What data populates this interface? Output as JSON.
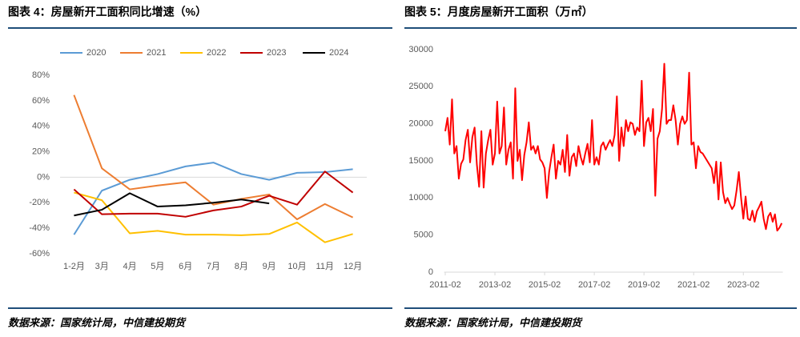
{
  "chart_data": [
    {
      "type": "line",
      "title": "图表 4：房屋新开工面积同比增速（%）",
      "categories": [
        "1-2月",
        "3月",
        "4月",
        "5月",
        "6月",
        "7月",
        "8月",
        "9月",
        "10月",
        "11月",
        "12月"
      ],
      "series": [
        {
          "name": "2020",
          "color": "#5b9bd5",
          "values": [
            -45,
            -10.5,
            -2,
            2.5,
            8.5,
            11.5,
            2.5,
            -2,
            3.5,
            4,
            6.3
          ]
        },
        {
          "name": "2021",
          "color": "#ed7d31",
          "values": [
            64.5,
            7,
            -9.5,
            -6.5,
            -4,
            -21.5,
            -17,
            -13.5,
            -33,
            -21,
            -31.5
          ]
        },
        {
          "name": "2022",
          "color": "#ffc000",
          "values": [
            -12,
            -18,
            -44,
            -42,
            -45,
            -45,
            -45.5,
            -44.5,
            -35.5,
            -51,
            -44.5
          ]
        },
        {
          "name": "2023",
          "color": "#c00000",
          "values": [
            -9.5,
            -29,
            -28.5,
            -28.5,
            -31,
            -26,
            -23,
            -14.5,
            -21.5,
            4.5,
            -12
          ]
        },
        {
          "name": "2024",
          "color": "#000000",
          "values": [
            -30,
            -25.5,
            -12.5,
            -23,
            -22,
            -20,
            -17.5,
            -20.5,
            null,
            null,
            null
          ]
        }
      ],
      "ylim": [
        -60,
        80
      ],
      "yticks": [
        {
          "value": -60,
          "label": "-60%"
        },
        {
          "value": -40,
          "label": "-40%"
        },
        {
          "value": -20,
          "label": "-20%"
        },
        {
          "value": 0,
          "label": "0%"
        },
        {
          "value": 20,
          "label": "20%"
        },
        {
          "value": 40,
          "label": "40%"
        },
        {
          "value": 60,
          "label": "60%"
        },
        {
          "value": 80,
          "label": "80%"
        }
      ],
      "grid": false,
      "legend": "top",
      "source": "数据来源：国家统计局，中信建投期货"
    },
    {
      "type": "line",
      "title": "图表 5：月度房屋新开工面积（万㎡）",
      "categories": [
        "2011-02",
        null,
        null,
        null,
        null,
        null,
        null,
        null,
        null,
        null,
        null,
        null,
        null,
        null,
        null,
        null,
        null,
        null,
        null,
        null,
        null,
        null,
        "2013-02",
        null,
        null,
        null,
        null,
        null,
        null,
        null,
        null,
        null,
        null,
        null,
        null,
        null,
        null,
        null,
        null,
        null,
        null,
        null,
        null,
        null,
        "2015-02",
        null,
        null,
        null,
        null,
        null,
        null,
        null,
        null,
        null,
        null,
        null,
        null,
        null,
        null,
        null,
        null,
        null,
        null,
        null,
        null,
        null,
        "2017-02",
        null,
        null,
        null,
        null,
        null,
        null,
        null,
        null,
        null,
        null,
        null,
        null,
        null,
        null,
        null,
        null,
        null,
        null,
        null,
        null,
        null,
        "2019-02",
        null,
        null,
        null,
        null,
        null,
        null,
        null,
        null,
        null,
        null,
        null,
        null,
        null,
        null,
        null,
        null,
        null,
        null,
        null,
        null,
        null,
        "2021-02",
        null,
        null,
        null,
        null,
        null,
        null,
        null,
        null,
        null,
        null,
        null,
        null,
        null,
        null,
        null,
        null,
        null,
        null,
        null,
        null,
        null,
        "2023-02",
        null,
        null,
        null,
        null,
        null,
        null,
        null,
        null,
        null,
        null,
        null,
        null,
        null,
        null,
        null,
        null,
        null
      ],
      "values": [
        19000,
        20800,
        17200,
        23300,
        16000,
        17000,
        12600,
        14600,
        15200,
        17800,
        19200,
        14800,
        18200,
        19500,
        14500,
        11500,
        19000,
        11400,
        16000,
        17800,
        19200,
        14500,
        16000,
        23000,
        16000,
        17000,
        22200,
        14500,
        16500,
        17500,
        12600,
        24800,
        15000,
        16500,
        12400,
        15800,
        17500,
        20200,
        16500,
        17000,
        16000,
        17000,
        15200,
        14800,
        14000,
        10000,
        13500,
        15500,
        17200,
        12600,
        15000,
        14500,
        16500,
        13500,
        18500,
        13000,
        15500,
        16000,
        14300,
        17000,
        15500,
        14500,
        16000,
        17300,
        14800,
        20500,
        14500,
        15500,
        14500,
        17000,
        17500,
        16500,
        17200,
        17800,
        17000,
        18500,
        23700,
        15000,
        19500,
        17000,
        20500,
        19000,
        20200,
        20000,
        18500,
        19500,
        19000,
        25800,
        17000,
        20200,
        20800,
        19000,
        22000,
        10300,
        18000,
        19000,
        22000,
        28100,
        20000,
        20500,
        20500,
        22500,
        20500,
        17200,
        20000,
        21000,
        20000,
        20500,
        26900,
        17200,
        17500,
        14000,
        17000,
        16200,
        16000,
        15500,
        15000,
        14500,
        14000,
        12000,
        14900,
        9800,
        14800,
        10800,
        9300,
        10000,
        9200,
        8500,
        9000,
        11000,
        13500,
        10000,
        7200,
        10200,
        7200,
        7000,
        8300,
        6800,
        8200,
        8800,
        9500,
        7200,
        5800,
        7500,
        8000,
        6800,
        7800,
        5600,
        6000,
        6600
      ],
      "color": "#ff0000",
      "ylim": [
        0,
        30000
      ],
      "yticks": [
        0,
        5000,
        10000,
        15000,
        20000,
        25000,
        30000
      ],
      "grid": false,
      "source": "数据来源：国家统计局，中信建投期货"
    }
  ]
}
